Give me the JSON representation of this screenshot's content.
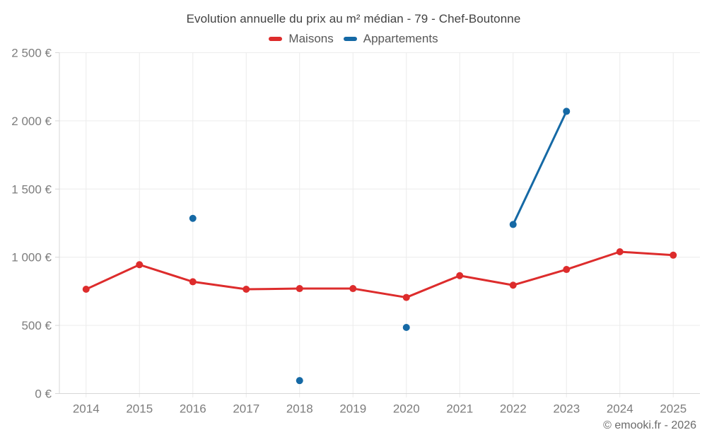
{
  "page": {
    "footer": "© emooki.fr - 2026"
  },
  "chart_data": {
    "type": "line",
    "title": "Evolution annuelle du prix au m² médian - 79 - Chef-Boutonne",
    "xlabel": "",
    "ylabel": "",
    "x": [
      "2014",
      "2015",
      "2016",
      "2017",
      "2018",
      "2019",
      "2020",
      "2021",
      "2022",
      "2023",
      "2024",
      "2025"
    ],
    "ylim": [
      0,
      2500
    ],
    "ytick_step": 500,
    "y_tick_labels": [
      "0 €",
      "500 €",
      "1 000 €",
      "1 500 €",
      "2 000 €",
      "2 500 €"
    ],
    "grid": true,
    "legend_position": "top",
    "currency": "€",
    "series": [
      {
        "name": "Maisons",
        "color": "#dd2c2c",
        "values": [
          765,
          945,
          820,
          765,
          770,
          770,
          705,
          865,
          795,
          910,
          1040,
          1015
        ]
      },
      {
        "name": "Appartements",
        "color": "#1569a5",
        "values": [
          null,
          null,
          1285,
          null,
          95,
          null,
          485,
          null,
          1240,
          2070,
          null,
          null
        ]
      }
    ]
  }
}
